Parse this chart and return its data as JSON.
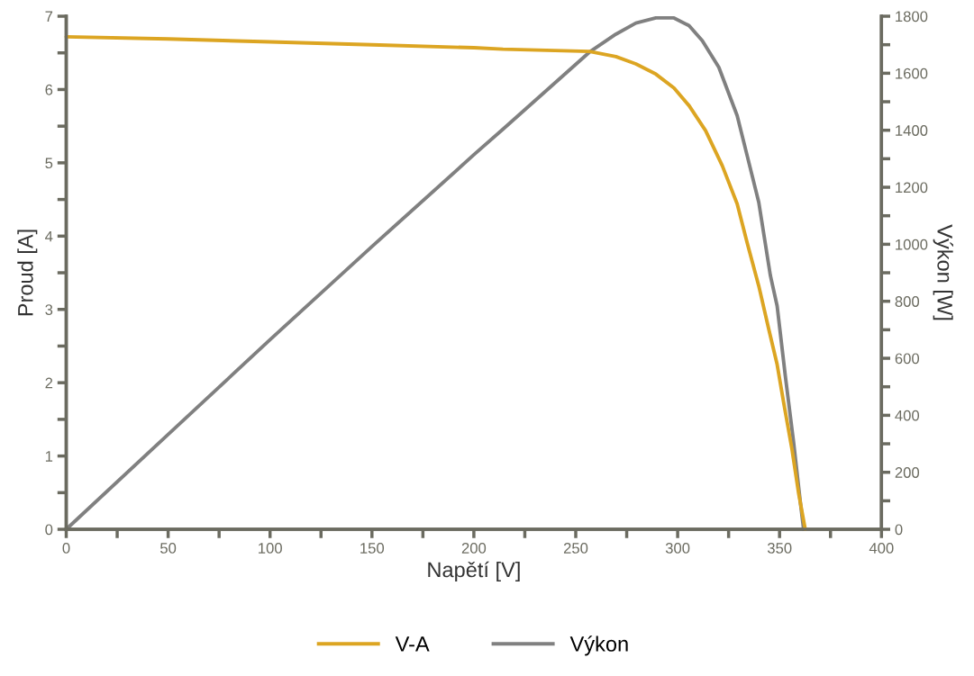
{
  "chart_data": {
    "type": "line",
    "xlabel": "Napětí [V]",
    "ylabel": "Proud [A]",
    "y2label": "Výkon [W]",
    "xlim": [
      0,
      400
    ],
    "xticks": [
      0,
      {
        "value": 25,
        "label": null
      },
      50,
      {
        "value": 75,
        "label": null
      },
      100,
      {
        "value": 125,
        "label": null
      },
      150,
      {
        "value": 175,
        "label": null
      },
      200,
      {
        "value": 225,
        "label": null
      },
      250,
      {
        "value": 275,
        "label": null
      },
      300,
      {
        "value": 325,
        "label": null
      },
      350,
      {
        "value": 375,
        "label": null
      },
      400
    ],
    "ylim": [
      0,
      7
    ],
    "yticks": [
      0,
      {
        "value": 0.5,
        "label": null
      },
      1,
      {
        "value": 1.5,
        "label": null
      },
      2,
      {
        "value": 2.5,
        "label": null
      },
      3,
      {
        "value": 3.5,
        "label": null
      },
      4,
      {
        "value": 4.5,
        "label": null
      },
      5,
      {
        "value": 5.5,
        "label": null
      },
      6,
      {
        "value": 6.5,
        "label": null
      },
      7
    ],
    "y2lim": [
      0,
      1800
    ],
    "y2ticks": [
      0,
      {
        "value": 100,
        "label": null
      },
      200,
      {
        "value": 300,
        "label": null
      },
      400,
      {
        "value": 500,
        "label": null
      },
      600,
      {
        "value": 700,
        "label": null
      },
      800,
      {
        "value": 900,
        "label": null
      },
      1000,
      {
        "value": 1100,
        "label": null
      },
      1200,
      {
        "value": 1300,
        "label": null
      },
      1400,
      {
        "value": 1500,
        "label": null
      },
      1600,
      {
        "value": 1700,
        "label": null
      },
      1800
    ],
    "grid": false,
    "legend": "bottom",
    "marker": "none",
    "line_style": "solid",
    "series": [
      {
        "name": "V-A",
        "color": "#dca522",
        "x": [
          0,
          50,
          100,
          150,
          200,
          214.3,
          256.7,
          269.7,
          279.5,
          289.3,
          298.2,
          305.6,
          313.7,
          321.9,
          329.2,
          334.1,
          339.8,
          344.7,
          348.8,
          352.0,
          356.1,
          359.3,
          362.6
        ],
        "values": [
          6.72,
          6.69,
          6.65,
          6.61,
          6.57,
          6.55,
          6.52,
          6.45,
          6.35,
          6.21,
          6.02,
          5.78,
          5.44,
          4.96,
          4.44,
          3.91,
          3.32,
          2.73,
          2.25,
          1.73,
          1.09,
          0.5,
          0
        ]
      },
      {
        "name": "Výkon",
        "color": "#808080",
        "axis": "y2",
        "x": [
          0,
          50,
          100,
          150,
          200,
          214.3,
          256.7,
          269.7,
          279.5,
          289.3,
          298.2,
          305.6,
          312.1,
          320.2,
          329.2,
          334.1,
          339.8,
          345.5,
          348.8,
          352.8,
          356.9,
          360.2,
          361.8
        ],
        "values": [
          0,
          333,
          665,
          992,
          1314,
          1404,
          1674,
          1737,
          1776,
          1794,
          1794,
          1767,
          1714,
          1621,
          1451,
          1311,
          1147,
          890,
          784,
          539,
          305,
          95,
          0
        ]
      }
    ]
  }
}
